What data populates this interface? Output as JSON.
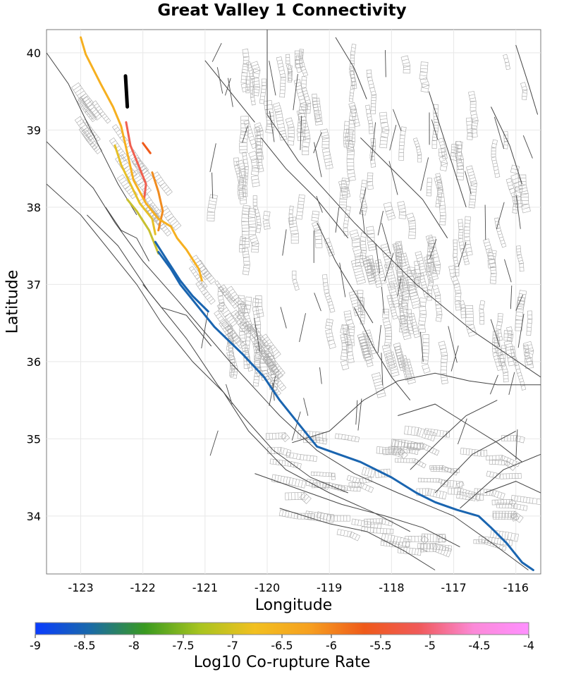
{
  "title": "Great Valley 1 Connectivity",
  "xlabel": "Longitude",
  "ylabel": "Latitude",
  "colorbar": {
    "label": "Log10 Co-rupture Rate",
    "ticks": [
      "-9",
      "-8.5",
      "-8",
      "-7.5",
      "-7",
      "-6.5",
      "-6",
      "-5.5",
      "-5",
      "-4.5",
      "-4"
    ],
    "colors": [
      "#0a3cff",
      "#1a6aa8",
      "#3a9a20",
      "#a8c420",
      "#f2c020",
      "#f6a020",
      "#ef5a1a",
      "#f05a5a",
      "#fb8ad8",
      "#ff90ff"
    ]
  },
  "colors": {
    "fault_trace": "#444444",
    "fault_surface": "#a0a0a0",
    "rupture_black": "#000000",
    "rupture_blue": "#1a65b0",
    "rupture_yellow": "#f2c020",
    "rupture_orange": "#f08c20",
    "rupture_red": "#f06050"
  },
  "chart_data": {
    "type": "map",
    "title": "Great Valley 1 Connectivity",
    "xlabel": "Longitude",
    "ylabel": "Latitude",
    "xlim": [
      -123.55,
      -115.6
    ],
    "ylim": [
      33.25,
      40.3
    ],
    "xticks": [
      -123,
      -122,
      -121,
      -120,
      -119,
      -118,
      -117,
      -116
    ],
    "yticks": [
      34,
      35,
      36,
      37,
      38,
      39,
      40
    ],
    "grid": true,
    "colorbar_range": [
      -9,
      -4
    ],
    "colored_ruptures": [
      {
        "name": "source-section",
        "color": "#000000",
        "points": [
          [
            -122.28,
            39.7
          ],
          [
            -122.25,
            39.3
          ]
        ]
      },
      {
        "name": "red-north",
        "color": "#f06050",
        "points": [
          [
            -122.27,
            39.1
          ],
          [
            -122.2,
            38.8
          ],
          [
            -122.05,
            38.5
          ],
          [
            -121.95,
            38.3
          ],
          [
            -121.98,
            38.1
          ]
        ]
      },
      {
        "name": "orange-red-east",
        "color": "#ef5a1a",
        "points": [
          [
            -122.0,
            38.83
          ],
          [
            -121.88,
            38.7
          ]
        ]
      },
      {
        "name": "orange-east",
        "color": "#f08c20",
        "points": [
          [
            -121.85,
            38.45
          ],
          [
            -121.75,
            38.2
          ],
          [
            -121.68,
            37.95
          ],
          [
            -121.75,
            37.7
          ]
        ]
      },
      {
        "name": "yellow-coastal",
        "color": "#f6b020",
        "points": [
          [
            -123.0,
            40.2
          ],
          [
            -122.92,
            39.98
          ],
          [
            -122.68,
            39.6
          ],
          [
            -122.48,
            39.3
          ],
          [
            -122.35,
            39.05
          ],
          [
            -122.25,
            38.7
          ],
          [
            -122.15,
            38.35
          ],
          [
            -121.95,
            38.05
          ],
          [
            -121.75,
            37.85
          ],
          [
            -121.55,
            37.75
          ],
          [
            -121.45,
            37.6
          ],
          [
            -121.3,
            37.45
          ],
          [
            -121.1,
            37.2
          ],
          [
            -121.05,
            37.05
          ]
        ]
      },
      {
        "name": "yellow-inner",
        "color": "#e6c028",
        "points": [
          [
            -122.45,
            38.8
          ],
          [
            -122.35,
            38.55
          ],
          [
            -122.2,
            38.3
          ],
          [
            -122.05,
            38.05
          ],
          [
            -121.85,
            37.85
          ],
          [
            -121.8,
            37.65
          ]
        ]
      },
      {
        "name": "yellow-bay",
        "color": "#c8c030",
        "points": [
          [
            -122.25,
            38.1
          ],
          [
            -122.1,
            37.95
          ],
          [
            -121.9,
            37.7
          ],
          [
            -121.8,
            37.5
          ],
          [
            -121.75,
            37.4
          ]
        ]
      },
      {
        "name": "blue-san-andreas",
        "color": "#1a65b0",
        "points": [
          [
            -121.75,
            37.42
          ],
          [
            -121.55,
            37.2
          ],
          [
            -121.4,
            37.0
          ],
          [
            -121.15,
            36.75
          ],
          [
            -120.85,
            36.45
          ],
          [
            -120.4,
            36.1
          ],
          [
            -120.05,
            35.8
          ],
          [
            -119.8,
            35.5
          ],
          [
            -119.45,
            35.15
          ],
          [
            -119.2,
            34.9
          ],
          [
            -118.85,
            34.8
          ],
          [
            -118.5,
            34.7
          ],
          [
            -118.0,
            34.5
          ],
          [
            -117.6,
            34.3
          ],
          [
            -117.3,
            34.18
          ],
          [
            -116.95,
            34.08
          ],
          [
            -116.6,
            34.0
          ],
          [
            -116.4,
            33.85
          ],
          [
            -116.15,
            33.65
          ],
          [
            -115.9,
            33.4
          ],
          [
            -115.72,
            33.3
          ]
        ]
      },
      {
        "name": "blue-calaveras",
        "color": "#1a65b0",
        "points": [
          [
            -121.8,
            37.55
          ],
          [
            -121.6,
            37.3
          ],
          [
            -121.4,
            37.05
          ],
          [
            -121.2,
            36.85
          ],
          [
            -120.95,
            36.65
          ]
        ]
      }
    ],
    "gray_fault_traces": [
      [
        [
          -123.55,
          38.85
        ],
        [
          -122.8,
          38.25
        ],
        [
          -122.45,
          37.8
        ],
        [
          -122.0,
          37.3
        ],
        [
          -121.45,
          36.8
        ],
        [
          -120.6,
          36.0
        ],
        [
          -119.8,
          35.3
        ],
        [
          -119.2,
          34.85
        ],
        [
          -118.6,
          34.55
        ],
        [
          -117.9,
          34.3
        ],
        [
          -117.0,
          34.0
        ],
        [
          -116.3,
          33.6
        ],
        [
          -115.8,
          33.3
        ]
      ],
      [
        [
          -123.55,
          38.3
        ],
        [
          -123.0,
          37.9
        ],
        [
          -122.6,
          37.5
        ],
        [
          -122.1,
          37.0
        ],
        [
          -121.7,
          36.5
        ],
        [
          -121.2,
          36.0
        ],
        [
          -120.7,
          35.6
        ],
        [
          -120.3,
          35.1
        ],
        [
          -119.7,
          34.6
        ],
        [
          -119.0,
          34.3
        ],
        [
          -118.3,
          34.05
        ],
        [
          -117.7,
          33.8
        ]
      ],
      [
        [
          -122.9,
          37.9
        ],
        [
          -122.4,
          37.5
        ],
        [
          -121.9,
          36.9
        ],
        [
          -121.3,
          36.3
        ],
        [
          -120.8,
          35.7
        ],
        [
          -120.4,
          35.3
        ],
        [
          -119.9,
          34.85
        ],
        [
          -119.3,
          34.5
        ],
        [
          -118.7,
          34.3
        ]
      ],
      [
        [
          -123.55,
          40.0
        ],
        [
          -123.2,
          39.6
        ],
        [
          -122.9,
          39.1
        ],
        [
          -122.65,
          38.7
        ],
        [
          -122.4,
          38.3
        ],
        [
          -122.1,
          37.9
        ]
      ],
      [
        [
          -120.0,
          40.3
        ],
        [
          -120.0,
          39.2
        ],
        [
          -119.5,
          38.6
        ],
        [
          -118.6,
          37.8
        ],
        [
          -117.6,
          37.0
        ],
        [
          -116.7,
          36.4
        ],
        [
          -115.6,
          35.8
        ]
      ],
      [
        [
          -119.6,
          34.95
        ],
        [
          -119.0,
          35.1
        ],
        [
          -118.45,
          35.5
        ],
        [
          -117.9,
          35.75
        ],
        [
          -117.3,
          35.85
        ],
        [
          -116.75,
          35.75
        ],
        [
          -116.3,
          35.7
        ],
        [
          -115.6,
          35.7
        ]
      ],
      [
        [
          -117.7,
          34.6
        ],
        [
          -117.2,
          35.0
        ],
        [
          -116.8,
          35.3
        ],
        [
          -116.3,
          35.5
        ]
      ],
      [
        [
          -117.3,
          34.3
        ],
        [
          -116.7,
          34.8
        ],
        [
          -116.0,
          35.1
        ]
      ],
      [
        [
          -116.9,
          34.1
        ],
        [
          -116.2,
          34.6
        ],
        [
          -115.6,
          34.8
        ]
      ],
      [
        [
          -119.8,
          34.1
        ],
        [
          -119.0,
          33.9
        ],
        [
          -118.4,
          33.8
        ],
        [
          -117.8,
          33.55
        ],
        [
          -117.3,
          33.3
        ]
      ],
      [
        [
          -120.2,
          34.55
        ],
        [
          -119.5,
          34.35
        ],
        [
          -118.8,
          34.15
        ],
        [
          -118.1,
          34.0
        ],
        [
          -117.5,
          33.85
        ],
        [
          -116.9,
          33.6
        ]
      ],
      [
        [
          -118.6,
          36.7
        ],
        [
          -118.3,
          36.2
        ],
        [
          -118.0,
          35.8
        ],
        [
          -117.7,
          35.5
        ]
      ],
      [
        [
          -119.2,
          37.8
        ],
        [
          -118.9,
          37.3
        ],
        [
          -118.6,
          36.9
        ],
        [
          -118.3,
          36.5
        ]
      ],
      [
        [
          -120.1,
          38.9
        ],
        [
          -119.7,
          38.5
        ],
        [
          -119.2,
          38.1
        ],
        [
          -118.7,
          37.6
        ]
      ],
      [
        [
          -121.0,
          39.9
        ],
        [
          -120.6,
          39.5
        ],
        [
          -120.2,
          39.1
        ]
      ],
      [
        [
          -118.5,
          38.9
        ],
        [
          -118.0,
          38.5
        ],
        [
          -117.5,
          38.1
        ],
        [
          -117.1,
          37.6
        ]
      ],
      [
        [
          -117.4,
          39.5
        ],
        [
          -117.2,
          39.0
        ],
        [
          -117.0,
          38.5
        ],
        [
          -116.8,
          38.0
        ]
      ],
      [
        [
          -116.4,
          39.3
        ],
        [
          -116.1,
          38.8
        ],
        [
          -115.9,
          38.3
        ]
      ],
      [
        [
          -116.0,
          40.1
        ],
        [
          -115.8,
          39.6
        ],
        [
          -115.65,
          39.2
        ]
      ],
      [
        [
          -118.9,
          40.2
        ],
        [
          -118.6,
          39.8
        ],
        [
          -118.4,
          39.4
        ]
      ],
      [
        [
          -117.9,
          35.3
        ],
        [
          -117.3,
          35.45
        ],
        [
          -116.8,
          35.2
        ],
        [
          -116.3,
          34.95
        ],
        [
          -115.9,
          34.7
        ]
      ],
      [
        [
          -116.5,
          34.3
        ],
        [
          -116.0,
          34.45
        ],
        [
          -115.6,
          34.3
        ]
      ],
      [
        [
          -122.0,
          37.0
        ],
        [
          -121.7,
          36.7
        ],
        [
          -121.3,
          36.6
        ],
        [
          -120.9,
          36.2
        ]
      ],
      [
        [
          -122.6,
          38.0
        ],
        [
          -122.35,
          37.7
        ],
        [
          -122.1,
          37.6
        ],
        [
          -121.9,
          37.3
        ]
      ]
    ]
  }
}
